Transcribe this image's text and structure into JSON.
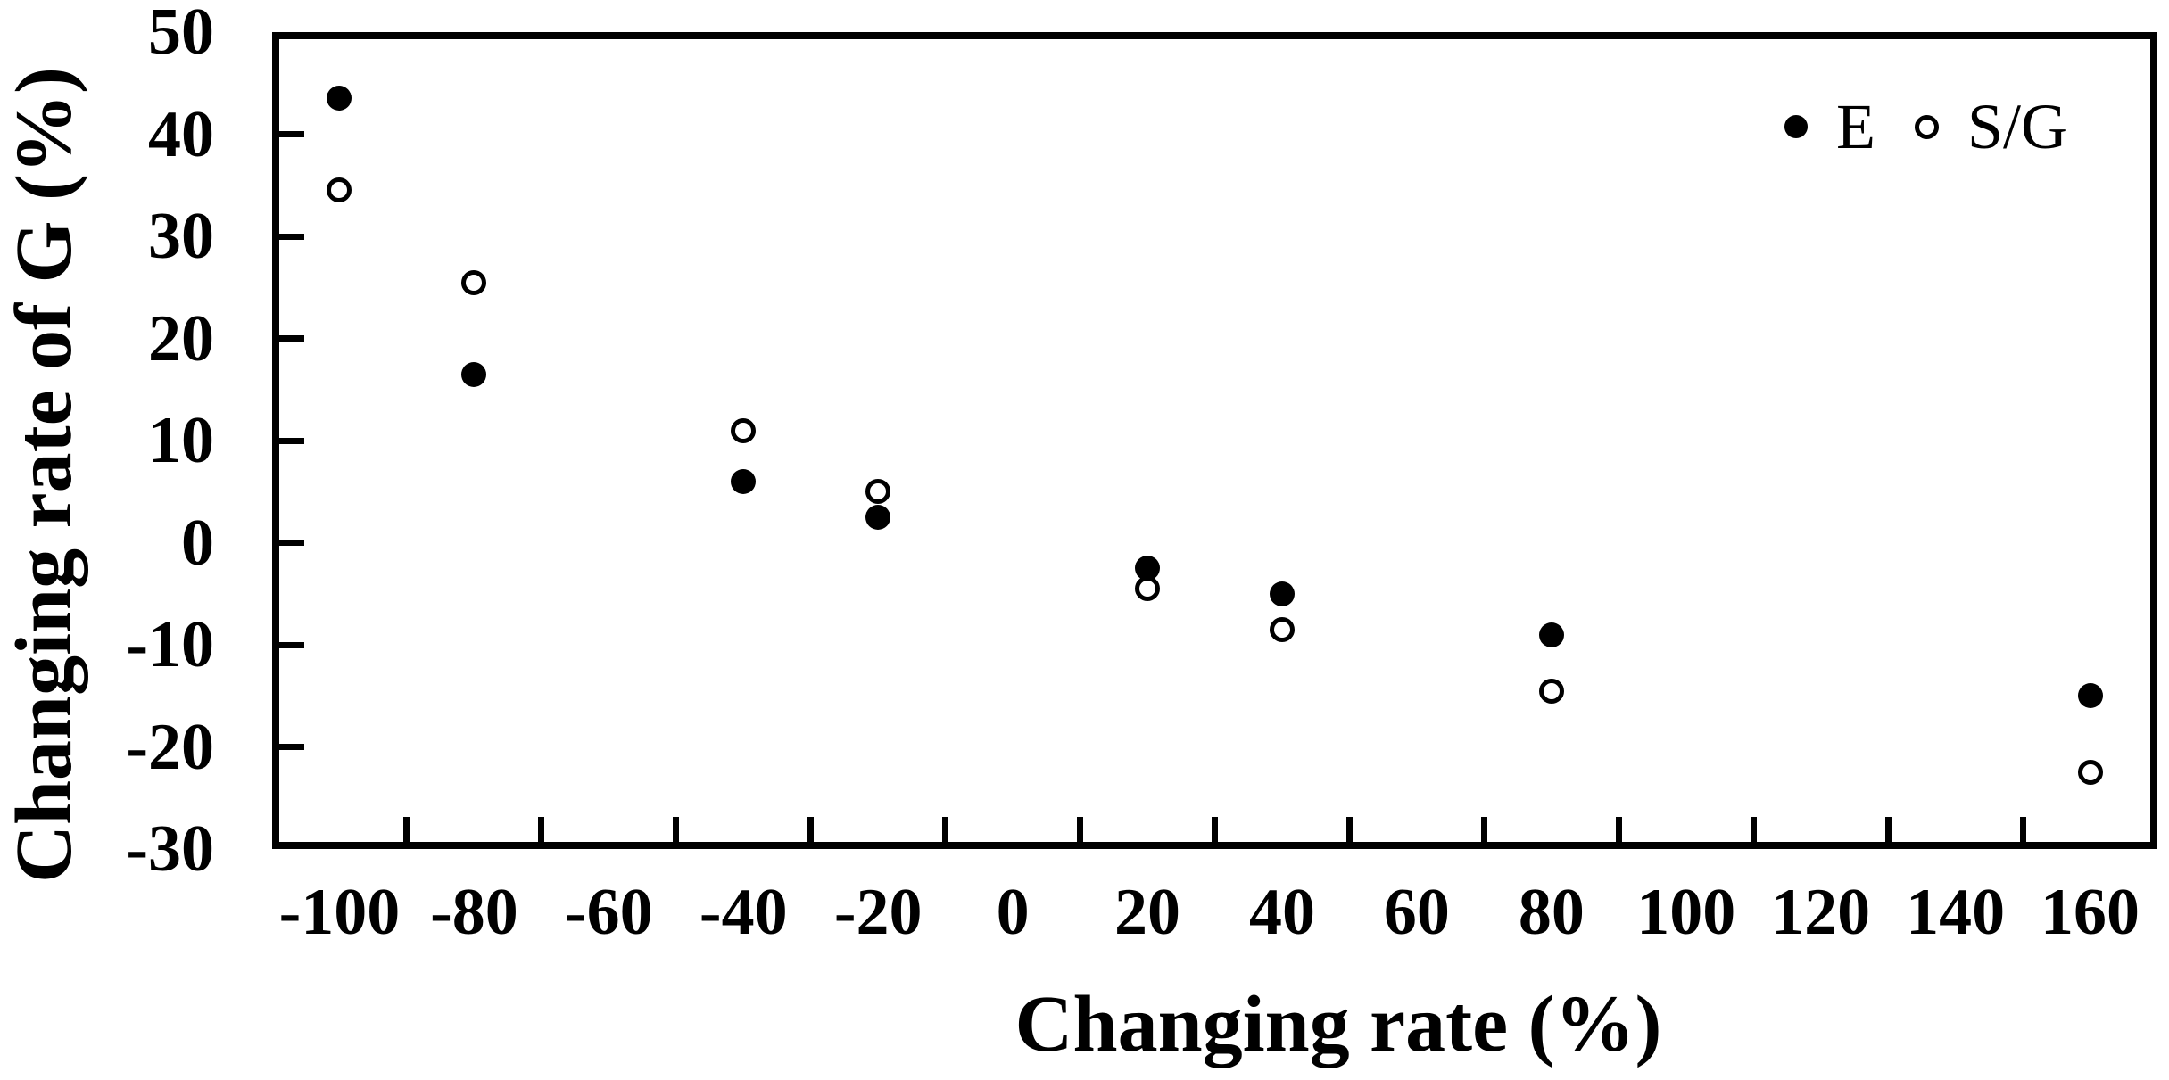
{
  "chart_data": {
    "type": "scatter",
    "title": "",
    "xlabel": "Changing rate (%)",
    "ylabel": "Changing rate of G (%)",
    "x_axis": {
      "kind": "category",
      "tick_labels": [
        "-100",
        "-80",
        "-60",
        "-40",
        "-20",
        "0",
        "20",
        "40",
        "60",
        "80",
        "100",
        "120",
        "140",
        "160"
      ],
      "tick_values": [
        -100,
        -80,
        -60,
        -40,
        -20,
        0,
        20,
        40,
        60,
        80,
        100,
        120,
        140,
        160
      ],
      "ticks_between_categories": true
    },
    "y_axis": {
      "min": -30,
      "max": 50,
      "tick_step": 10,
      "tick_labels": [
        "50",
        "40",
        "30",
        "20",
        "10",
        "0",
        "-10",
        "-20",
        "-30"
      ],
      "tick_values": [
        50,
        40,
        30,
        20,
        10,
        0,
        -10,
        -20,
        -30
      ]
    },
    "grid": "off",
    "legend": {
      "position": "top-right",
      "entries": [
        {
          "label": "E",
          "marker": "filled-circle"
        },
        {
          "label": "S/G",
          "marker": "open-circle"
        }
      ]
    },
    "series": [
      {
        "name": "E",
        "marker": "filled-circle",
        "points": [
          {
            "x": -100,
            "y": 43.5
          },
          {
            "x": -80,
            "y": 16.5
          },
          {
            "x": -40,
            "y": 6
          },
          {
            "x": -20,
            "y": 2.5
          },
          {
            "x": 20,
            "y": -2.5
          },
          {
            "x": 40,
            "y": -5
          },
          {
            "x": 80,
            "y": -9
          },
          {
            "x": 160,
            "y": -15
          }
        ]
      },
      {
        "name": "S/G",
        "marker": "open-circle",
        "points": [
          {
            "x": -100,
            "y": 34.5
          },
          {
            "x": -80,
            "y": 25.5
          },
          {
            "x": -40,
            "y": 11
          },
          {
            "x": -20,
            "y": 5
          },
          {
            "x": 20,
            "y": -4.5
          },
          {
            "x": 40,
            "y": -8.5
          },
          {
            "x": 80,
            "y": -14.5
          },
          {
            "x": 160,
            "y": -22.5
          }
        ]
      }
    ],
    "colors": {
      "foreground": "#000000",
      "background": "#ffffff"
    }
  }
}
